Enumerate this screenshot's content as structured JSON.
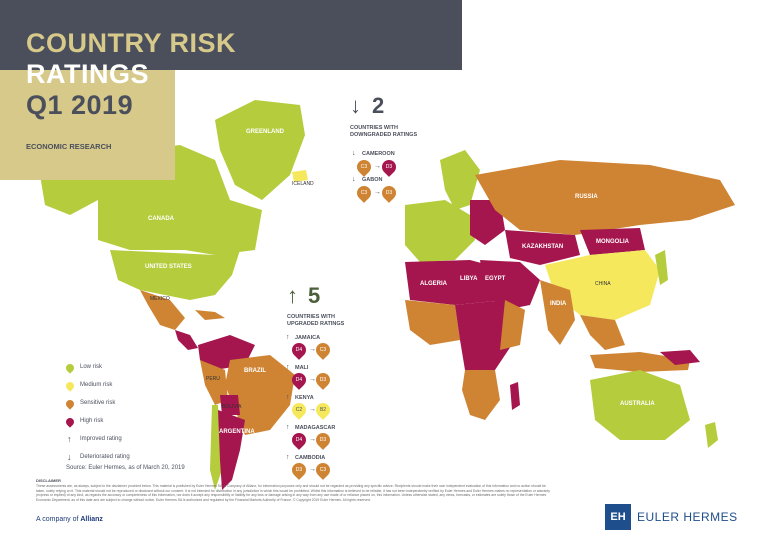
{
  "header": {
    "title_line1": "COUNTRY RISK",
    "title_line2": "RATINGS",
    "title_line3": "Q1 2019",
    "subtitle": "ECONOMIC RESEARCH"
  },
  "map_labels": {
    "greenland": "GREENLAND",
    "iceland": "ICELAND",
    "alaska": "Alaska",
    "canada": "CANADA",
    "united_states": "UNITED STATES",
    "mexico": "MEXICO",
    "brazil": "BRAZIL",
    "russia": "RUSSIA",
    "kazakhstan": "KAZAKHSTAN",
    "mongolia": "MONGOLIA",
    "china": "CHINA",
    "india": "INDIA",
    "australia": "AUSTRALIA",
    "libya": "LIBYA",
    "algeria": "ALGERIA",
    "egypt": "EGYPT",
    "argentina": "ARGENTINA",
    "peru": "PERU",
    "bolivia": "BOLIVIA"
  },
  "downgraded": {
    "count": "2",
    "caption_line1": "COUNTRIES WITH",
    "caption_line2": "DOWNGRADED RATINGS",
    "items": [
      {
        "country": "CAMEROON",
        "from": "C3",
        "to": "D3"
      },
      {
        "country": "GABON",
        "from": "C3",
        "to": "D3"
      }
    ]
  },
  "upgraded": {
    "count": "5",
    "caption_line1": "COUNTRIES WITH",
    "caption_line2": "UPGRADED RATINGS",
    "items": [
      {
        "country": "JAMAICA",
        "from": "D4",
        "to": "C3"
      },
      {
        "country": "MALI",
        "from": "D4",
        "to": "D3"
      },
      {
        "country": "KENYA",
        "from": "C2",
        "to": "B2"
      },
      {
        "country": "MADAGASCAR",
        "from": "D4",
        "to": "D3"
      },
      {
        "country": "CAMBODIA",
        "from": "D3",
        "to": "C3"
      }
    ]
  },
  "legend": {
    "low": "Low risk",
    "medium": "Medium risk",
    "sensitive": "Sensitive risk",
    "high": "High risk",
    "improved": "Improved rating",
    "deteriorated": "Deteriorated rating"
  },
  "colors": {
    "low": "#b5cc3c",
    "medium": "#f6e85c",
    "sensitive": "#cf8434",
    "high": "#a4164d",
    "dark": "#4b4f5c",
    "tan": "#d6c98a"
  },
  "footer": {
    "source": "Source: Euler Hermes, as of March 20, 2019",
    "disclaimer_title": "DISCLAIMER",
    "disclaimer_text": "These assessments are, as always, subject to the disclaimer provided below. This material is published by Euler Hermes SA, a Company of Allianz, for information purposes only and should not be regarded as providing any specific advice. Recipients should make their own independent evaluation of this information and no action should be taken, solely relying on it. This material should not be reproduced or disclosed without our consent. It is not intended for distribution in any jurisdiction in which this would be prohibited. Whilst this information is believed to be reliable, it has not been independently verified by Euler Hermes and Euler Hermes makes no representation or warranty (express or implied) of any kind, as regards the accuracy or completeness of this information, nor does it accept any responsibility or liability for any loss or damage arising in any way from any use made of or reliance placed on, this information. Unless otherwise stated, any views, forecasts, or estimates are solely those of the Euler Hermes Economic Department, as of this date and are subject to change without notice. Euler Hermes SA is authorized and regulated by the Financial Markets Authority of France. © Copyright 2019 Euler Hermes. All rights reserved.",
    "allianz_prefix": "A company of",
    "allianz_name": "Allianz",
    "eh_mark": "EH",
    "eh_name": "EULER HERMES"
  }
}
